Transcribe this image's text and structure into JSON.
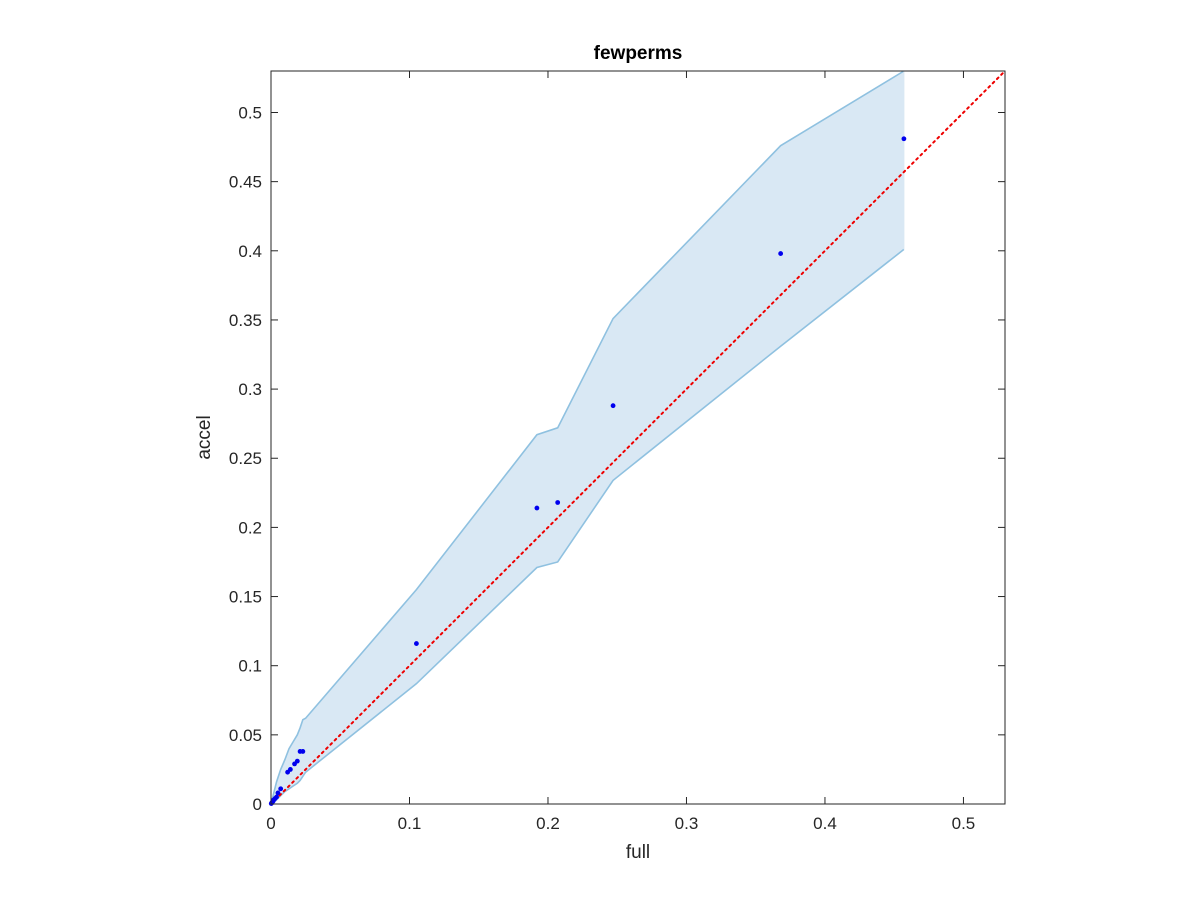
{
  "chart_data": {
    "type": "scatter",
    "title": "fewperms",
    "xlabel": "full",
    "ylabel": "accel",
    "xlim": [
      0,
      0.53
    ],
    "ylim": [
      0,
      0.53
    ],
    "xticks": [
      0,
      0.1,
      0.2,
      0.3,
      0.4,
      0.5
    ],
    "yticks": [
      0,
      0.05,
      0.1,
      0.15,
      0.2,
      0.25,
      0.3,
      0.35,
      0.4,
      0.45,
      0.5
    ],
    "xtick_labels": [
      "0",
      "0.1",
      "0.2",
      "0.3",
      "0.4",
      "0.5"
    ],
    "ytick_labels": [
      "0",
      "0.05",
      "0.1",
      "0.15",
      "0.2",
      "0.25",
      "0.3",
      "0.35",
      "0.4",
      "0.45",
      "0.5"
    ],
    "grid": false,
    "points": {
      "x": [
        0.0002,
        0.0005,
        0.001,
        0.0015,
        0.002,
        0.003,
        0.004,
        0.005,
        0.007,
        0.012,
        0.014,
        0.017,
        0.019,
        0.021,
        0.023,
        0.105,
        0.192,
        0.207,
        0.247,
        0.368,
        0.457
      ],
      "y": [
        0.0003,
        0.0008,
        0.0015,
        0.002,
        0.003,
        0.004,
        0.005,
        0.008,
        0.011,
        0.023,
        0.025,
        0.029,
        0.031,
        0.038,
        0.038,
        0.116,
        0.214,
        0.218,
        0.288,
        0.398,
        0.481
      ]
    },
    "band": {
      "x": [
        0,
        0.002,
        0.004,
        0.007,
        0.01,
        0.013,
        0.016,
        0.019,
        0.021,
        0.023,
        0.025,
        0.105,
        0.192,
        0.207,
        0.247,
        0.368,
        0.457
      ],
      "upper": [
        0,
        0.008,
        0.016,
        0.025,
        0.032,
        0.04,
        0.045,
        0.05,
        0.055,
        0.061,
        0.062,
        0.155,
        0.267,
        0.272,
        0.351,
        0.476,
        0.53
      ],
      "lower": [
        0,
        0.001,
        0.003,
        0.006,
        0.009,
        0.011,
        0.013,
        0.015,
        0.017,
        0.02,
        0.023,
        0.087,
        0.171,
        0.175,
        0.234,
        0.331,
        0.401
      ]
    },
    "reference_line": {
      "x": [
        0,
        0.53
      ],
      "y": [
        0,
        0.53
      ],
      "style": "dotted"
    },
    "colors": {
      "band_fill": "#d9e8f4",
      "band_edge": "#8fc1e0",
      "points": "#0000ee",
      "reference_line": "#ee0000",
      "axes": "#262626"
    }
  }
}
